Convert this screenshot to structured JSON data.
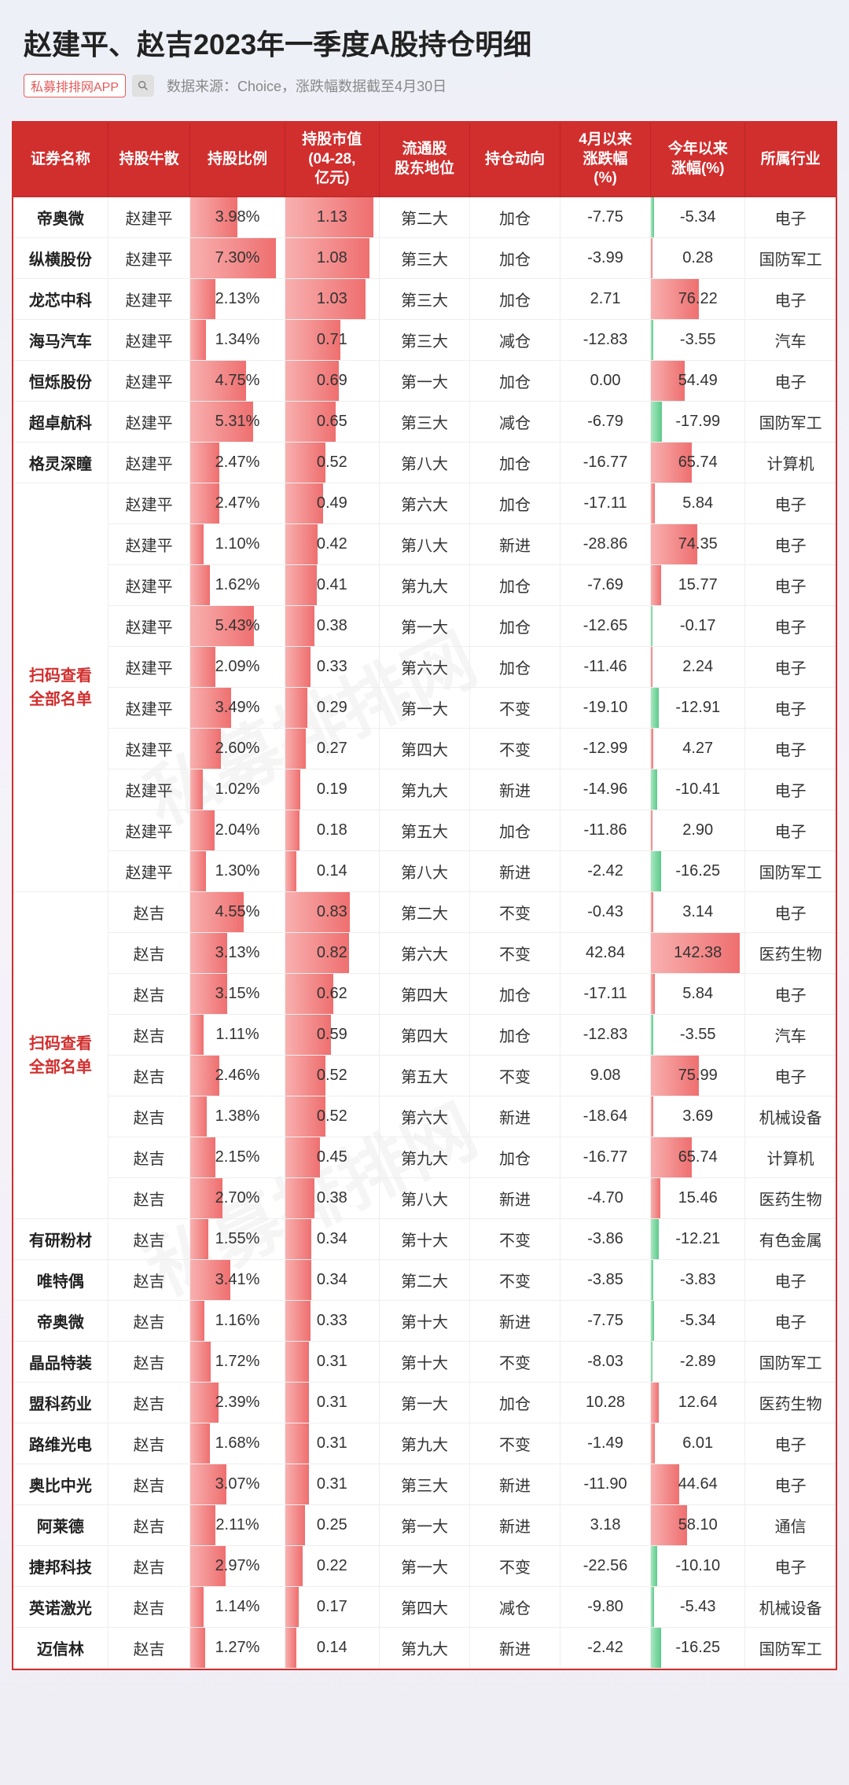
{
  "title": "赵建平、赵吉2023年一季度A股持仓明细",
  "app_tag": "私募排排网APP",
  "source_text": "数据来源：Choice，涨跌幅数据截至4月30日",
  "watermark": "私募排排网",
  "headers": [
    "证券名称",
    "持股牛散",
    "持股比例",
    "持股市值\n(04-28,\n亿元)",
    "流通股\n股东地位",
    "持仓动向",
    "4月以来\n涨跌幅\n(%)",
    "今年以来\n涨幅(%)",
    "所属行业"
  ],
  "group_label": "扫码查看\n全部名单",
  "bar_max_ratio": 8.0,
  "bar_max_value": 1.2,
  "bar_max_ytd": 150.0,
  "bar_color_pos": "#ef6f6f",
  "bar_color_neg": "#5cc98a",
  "rows": [
    {
      "stock": "帝奥微",
      "holder": "赵建平",
      "ratio": 3.98,
      "value": 1.13,
      "rank": "第二大",
      "move": "加仓",
      "apr": -7.75,
      "ytd": -5.34,
      "ind": "电子"
    },
    {
      "stock": "纵横股份",
      "holder": "赵建平",
      "ratio": 7.3,
      "value": 1.08,
      "rank": "第三大",
      "move": "加仓",
      "apr": -3.99,
      "ytd": 0.28,
      "ind": "国防军工"
    },
    {
      "stock": "龙芯中科",
      "holder": "赵建平",
      "ratio": 2.13,
      "value": 1.03,
      "rank": "第三大",
      "move": "加仓",
      "apr": 2.71,
      "ytd": 76.22,
      "ind": "电子"
    },
    {
      "stock": "海马汽车",
      "holder": "赵建平",
      "ratio": 1.34,
      "value": 0.71,
      "rank": "第三大",
      "move": "减仓",
      "apr": -12.83,
      "ytd": -3.55,
      "ind": "汽车"
    },
    {
      "stock": "恒烁股份",
      "holder": "赵建平",
      "ratio": 4.75,
      "value": 0.69,
      "rank": "第一大",
      "move": "加仓",
      "apr": 0.0,
      "ytd": 54.49,
      "ind": "电子"
    },
    {
      "stock": "超卓航科",
      "holder": "赵建平",
      "ratio": 5.31,
      "value": 0.65,
      "rank": "第三大",
      "move": "减仓",
      "apr": -6.79,
      "ytd": -17.99,
      "ind": "国防军工"
    },
    {
      "stock": "格灵深瞳",
      "holder": "赵建平",
      "ratio": 2.47,
      "value": 0.52,
      "rank": "第八大",
      "move": "加仓",
      "apr": -16.77,
      "ytd": 65.74,
      "ind": "计算机"
    },
    {
      "stock": "__GROUP1__",
      "holder": "赵建平",
      "ratio": 2.47,
      "value": 0.49,
      "rank": "第六大",
      "move": "加仓",
      "apr": -17.11,
      "ytd": 5.84,
      "ind": "电子"
    },
    {
      "stock": "",
      "holder": "赵建平",
      "ratio": 1.1,
      "value": 0.42,
      "rank": "第八大",
      "move": "新进",
      "apr": -28.86,
      "ytd": 74.35,
      "ind": "电子"
    },
    {
      "stock": "",
      "holder": "赵建平",
      "ratio": 1.62,
      "value": 0.41,
      "rank": "第九大",
      "move": "加仓",
      "apr": -7.69,
      "ytd": 15.77,
      "ind": "电子"
    },
    {
      "stock": "",
      "holder": "赵建平",
      "ratio": 5.43,
      "value": 0.38,
      "rank": "第一大",
      "move": "加仓",
      "apr": -12.65,
      "ytd": -0.17,
      "ind": "电子"
    },
    {
      "stock": "",
      "holder": "赵建平",
      "ratio": 2.09,
      "value": 0.33,
      "rank": "第六大",
      "move": "加仓",
      "apr": -11.46,
      "ytd": 2.24,
      "ind": "电子"
    },
    {
      "stock": "",
      "holder": "赵建平",
      "ratio": 3.49,
      "value": 0.29,
      "rank": "第一大",
      "move": "不变",
      "apr": -19.1,
      "ytd": -12.91,
      "ind": "电子"
    },
    {
      "stock": "",
      "holder": "赵建平",
      "ratio": 2.6,
      "value": 0.27,
      "rank": "第四大",
      "move": "不变",
      "apr": -12.99,
      "ytd": 4.27,
      "ind": "电子"
    },
    {
      "stock": "",
      "holder": "赵建平",
      "ratio": 1.02,
      "value": 0.19,
      "rank": "第九大",
      "move": "新进",
      "apr": -14.96,
      "ytd": -10.41,
      "ind": "电子"
    },
    {
      "stock": "",
      "holder": "赵建平",
      "ratio": 2.04,
      "value": 0.18,
      "rank": "第五大",
      "move": "加仓",
      "apr": -11.86,
      "ytd": 2.9,
      "ind": "电子"
    },
    {
      "stock": "",
      "holder": "赵建平",
      "ratio": 1.3,
      "value": 0.14,
      "rank": "第八大",
      "move": "新进",
      "apr": -2.42,
      "ytd": -16.25,
      "ind": "国防军工"
    },
    {
      "stock": "__GROUP2__",
      "holder": "赵吉",
      "ratio": 4.55,
      "value": 0.83,
      "rank": "第二大",
      "move": "不变",
      "apr": -0.43,
      "ytd": 3.14,
      "ind": "电子"
    },
    {
      "stock": "",
      "holder": "赵吉",
      "ratio": 3.13,
      "value": 0.82,
      "rank": "第六大",
      "move": "不变",
      "apr": 42.84,
      "ytd": 142.38,
      "ind": "医药生物"
    },
    {
      "stock": "",
      "holder": "赵吉",
      "ratio": 3.15,
      "value": 0.62,
      "rank": "第四大",
      "move": "加仓",
      "apr": -17.11,
      "ytd": 5.84,
      "ind": "电子"
    },
    {
      "stock": "",
      "holder": "赵吉",
      "ratio": 1.11,
      "value": 0.59,
      "rank": "第四大",
      "move": "加仓",
      "apr": -12.83,
      "ytd": -3.55,
      "ind": "汽车"
    },
    {
      "stock": "",
      "holder": "赵吉",
      "ratio": 2.46,
      "value": 0.52,
      "rank": "第五大",
      "move": "不变",
      "apr": 9.08,
      "ytd": 75.99,
      "ind": "电子"
    },
    {
      "stock": "",
      "holder": "赵吉",
      "ratio": 1.38,
      "value": 0.52,
      "rank": "第六大",
      "move": "新进",
      "apr": -18.64,
      "ytd": 3.69,
      "ind": "机械设备"
    },
    {
      "stock": "",
      "holder": "赵吉",
      "ratio": 2.15,
      "value": 0.45,
      "rank": "第九大",
      "move": "加仓",
      "apr": -16.77,
      "ytd": 65.74,
      "ind": "计算机"
    },
    {
      "stock": "",
      "holder": "赵吉",
      "ratio": 2.7,
      "value": 0.38,
      "rank": "第八大",
      "move": "新进",
      "apr": -4.7,
      "ytd": 15.46,
      "ind": "医药生物"
    },
    {
      "stock": "有研粉材",
      "holder": "赵吉",
      "ratio": 1.55,
      "value": 0.34,
      "rank": "第十大",
      "move": "不变",
      "apr": -3.86,
      "ytd": -12.21,
      "ind": "有色金属"
    },
    {
      "stock": "唯特偶",
      "holder": "赵吉",
      "ratio": 3.41,
      "value": 0.34,
      "rank": "第二大",
      "move": "不变",
      "apr": -3.85,
      "ytd": -3.83,
      "ind": "电子"
    },
    {
      "stock": "帝奥微",
      "holder": "赵吉",
      "ratio": 1.16,
      "value": 0.33,
      "rank": "第十大",
      "move": "新进",
      "apr": -7.75,
      "ytd": -5.34,
      "ind": "电子"
    },
    {
      "stock": "晶品特装",
      "holder": "赵吉",
      "ratio": 1.72,
      "value": 0.31,
      "rank": "第十大",
      "move": "不变",
      "apr": -8.03,
      "ytd": -2.89,
      "ind": "国防军工"
    },
    {
      "stock": "盟科药业",
      "holder": "赵吉",
      "ratio": 2.39,
      "value": 0.31,
      "rank": "第一大",
      "move": "加仓",
      "apr": 10.28,
      "ytd": 12.64,
      "ind": "医药生物"
    },
    {
      "stock": "路维光电",
      "holder": "赵吉",
      "ratio": 1.68,
      "value": 0.31,
      "rank": "第九大",
      "move": "不变",
      "apr": -1.49,
      "ytd": 6.01,
      "ind": "电子"
    },
    {
      "stock": "奥比中光",
      "holder": "赵吉",
      "ratio": 3.07,
      "value": 0.31,
      "rank": "第三大",
      "move": "新进",
      "apr": -11.9,
      "ytd": 44.64,
      "ind": "电子"
    },
    {
      "stock": "阿莱德",
      "holder": "赵吉",
      "ratio": 2.11,
      "value": 0.25,
      "rank": "第一大",
      "move": "新进",
      "apr": 3.18,
      "ytd": 58.1,
      "ind": "通信"
    },
    {
      "stock": "捷邦科技",
      "holder": "赵吉",
      "ratio": 2.97,
      "value": 0.22,
      "rank": "第一大",
      "move": "不变",
      "apr": -22.56,
      "ytd": -10.1,
      "ind": "电子"
    },
    {
      "stock": "英诺激光",
      "holder": "赵吉",
      "ratio": 1.14,
      "value": 0.17,
      "rank": "第四大",
      "move": "减仓",
      "apr": -9.8,
      "ytd": -5.43,
      "ind": "机械设备"
    },
    {
      "stock": "迈信林",
      "holder": "赵吉",
      "ratio": 1.27,
      "value": 0.14,
      "rank": "第九大",
      "move": "新进",
      "apr": -2.42,
      "ytd": -16.25,
      "ind": "国防军工"
    }
  ]
}
